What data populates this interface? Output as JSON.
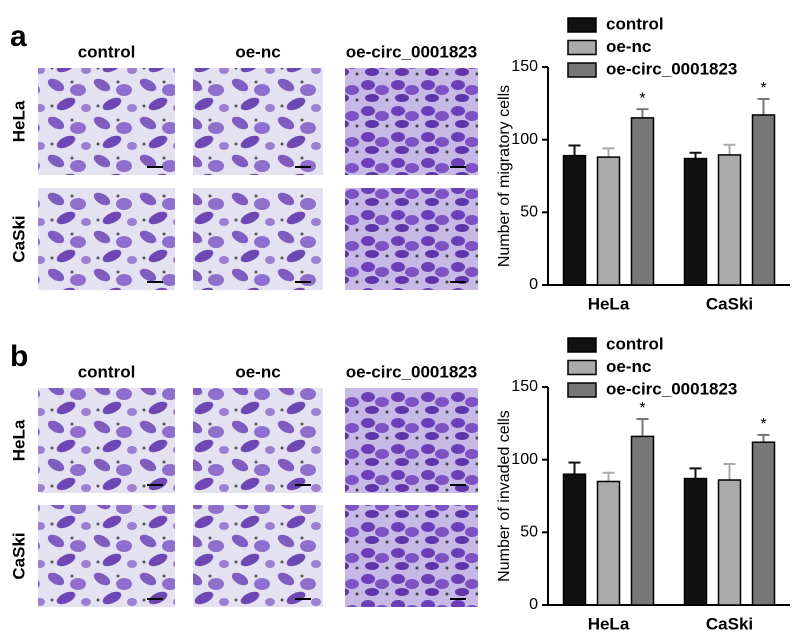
{
  "panels": [
    {
      "label": "a",
      "columns": [
        "control",
        "oe-nc",
        "oe-circ_0001823"
      ],
      "rows": [
        "HeLa",
        "CaSki"
      ]
    },
    {
      "label": "b",
      "columns": [
        "control",
        "oe-nc",
        "oe-circ_0001823"
      ],
      "rows": [
        "HeLa",
        "CaSki"
      ]
    }
  ],
  "chart_data": [
    {
      "type": "bar",
      "y_label": "Number of migratory cells",
      "categories": [
        "HeLa",
        "CaSki"
      ],
      "series": [
        {
          "name": "control",
          "color": "#111111",
          "values": [
            89,
            87
          ],
          "errors": [
            7,
            4
          ]
        },
        {
          "name": "oe-nc",
          "color": "#aaaaaa",
          "values": [
            88,
            89.5
          ],
          "errors": [
            6,
            7
          ]
        },
        {
          "name": "oe-circ_0001823",
          "color": "#777777",
          "values": [
            115,
            117
          ],
          "errors": [
            6,
            11
          ],
          "markers": [
            "*",
            "*"
          ]
        }
      ],
      "ylim": [
        0,
        150
      ],
      "yticks": [
        0,
        50,
        100,
        150
      ],
      "legend": "top"
    },
    {
      "type": "bar",
      "y_label": "Number of invaded cells",
      "categories": [
        "HeLa",
        "CaSki"
      ],
      "series": [
        {
          "name": "control",
          "color": "#111111",
          "values": [
            90,
            87
          ],
          "errors": [
            8,
            7
          ]
        },
        {
          "name": "oe-nc",
          "color": "#aaaaaa",
          "values": [
            85,
            86
          ],
          "errors": [
            6,
            11
          ]
        },
        {
          "name": "oe-circ_0001823",
          "color": "#777777",
          "values": [
            116,
            112
          ],
          "errors": [
            12,
            5
          ],
          "markers": [
            "*",
            "*"
          ]
        }
      ],
      "ylim": [
        0,
        150
      ],
      "yticks": [
        0,
        50,
        100,
        150
      ],
      "legend": "top"
    }
  ]
}
